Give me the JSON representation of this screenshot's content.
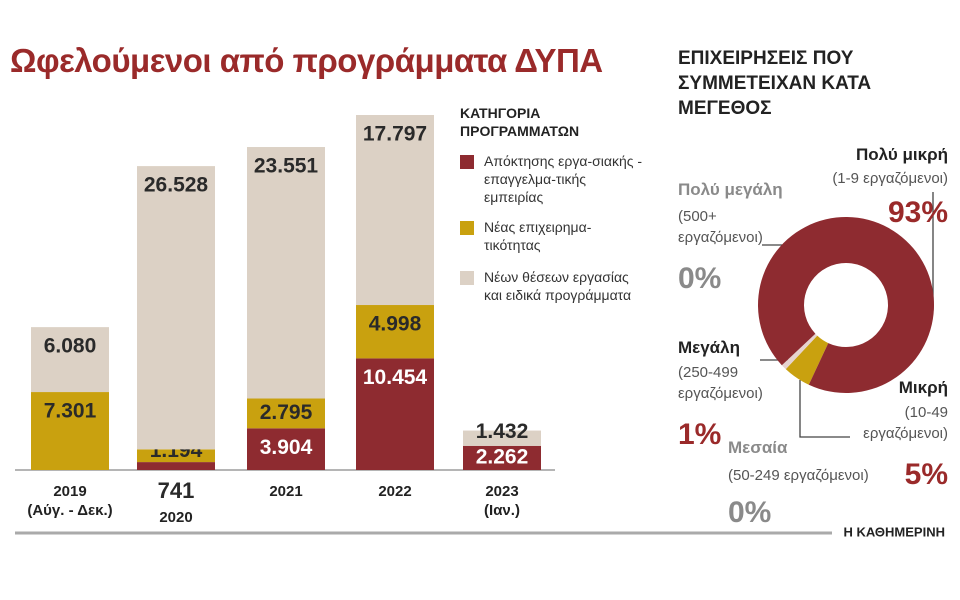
{
  "chart_data": [
    {
      "type": "stacked-bar",
      "title": "Ωφελούμενοι από προγράμματα ΔΥΠΑ",
      "legend_title": "ΚΑΤΗΓΟΡΙΑ ΠΡΟΓΡΑΜΜΑΤΩΝ",
      "categories": [
        [
          "2019",
          "(Αύγ. - Δεκ.)"
        ],
        [
          "2020"
        ],
        [
          "2021"
        ],
        [
          "2022"
        ],
        [
          "2023",
          "(Ιαν.)"
        ]
      ],
      "series": [
        {
          "name": "Απόκτησης εργα-σιακής - επαγγελμα-τικής εμπειρίας",
          "color": "#8e2b30",
          "values": [
            null,
            741,
            3904,
            10454,
            2262
          ],
          "value_labels": [
            null,
            "741",
            "3.904",
            "10.454",
            "2.262"
          ]
        },
        {
          "name": "Νέας επιχειρημα-τικότητας",
          "color": "#c9a10f",
          "values": [
            7301,
            1194,
            2795,
            4998,
            null
          ],
          "value_labels": [
            "7.301",
            "1.194",
            "2.795",
            "4.998",
            null
          ]
        },
        {
          "name": "Νέων θέσεων εργασίας και ειδικά προγράμματα",
          "color": "#dcd1c5",
          "values": [
            6080,
            26528,
            23551,
            17797,
            1432
          ],
          "value_labels": [
            "6.080",
            "26.528",
            "23.551",
            "17.797",
            "1.432"
          ]
        }
      ]
    },
    {
      "type": "donut",
      "title": "ΕΠΙΧΕΙΡΗΣΕΙΣ ΠΟΥ ΣΥΜΜΕΤΕΙΧΑΝ ΚΑΤΑ ΜΕΓΕΘΟΣ",
      "categories": [
        "Μικρή",
        "Μεσαία",
        "Μεγάλη",
        "Πολύ μεγάλη",
        "Πολύ μικρή"
      ],
      "details": [
        "(10-49 εργαζόμενοι)",
        "(50-249 εργαζόμενοι)",
        "(250-499 εργαζόμενοι)",
        "(500+ εργαζόμενοι)",
        "(1-9 εργαζόμενοι)"
      ],
      "values": [
        5,
        0,
        1,
        0,
        93
      ],
      "value_labels": [
        "5%",
        "0%",
        "1%",
        "0%",
        "93%"
      ],
      "colors": [
        "#c9a10f",
        "#b8b8b8",
        "#e6d3cf",
        "#9a9a9a",
        "#8e2b30"
      ]
    }
  ],
  "source": "Η ΚΑΘΗΜΕΡΙΝΗ"
}
